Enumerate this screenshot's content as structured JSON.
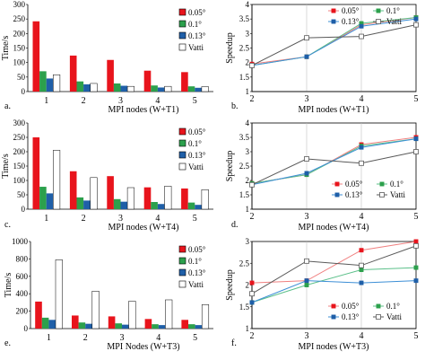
{
  "colors": {
    "s005": "#e8141c",
    "s01": "#2ca04c",
    "s013": "#1f5fa8",
    "vatti": "#ffffff",
    "vatti_line": "#595959",
    "line005": "#f08080",
    "line01": "#5cc08a",
    "line013": "#3d8fd6"
  },
  "chart_data": [
    {
      "id": "a",
      "type": "bar",
      "panel_label": "a.",
      "ylabel": "Time/s",
      "xlabel": "MPI nodes (W+T1)",
      "categories": [
        "1",
        "2",
        "3",
        "4",
        "5"
      ],
      "ylim": [
        0,
        300
      ],
      "yticks": [
        "0",
        "50",
        "100",
        "150",
        "200",
        "250",
        "300"
      ],
      "legend_position": "top-right",
      "series": [
        {
          "name": "0.05°",
          "values": [
            242,
            124,
            109,
            72,
            67
          ]
        },
        {
          "name": "0.1°",
          "values": [
            70,
            35,
            28,
            21,
            18
          ]
        },
        {
          "name": "0.13°",
          "values": [
            45,
            25,
            20,
            14,
            13
          ]
        },
        {
          "name": "Vatti",
          "values": [
            58,
            28,
            18,
            18,
            17
          ]
        }
      ]
    },
    {
      "id": "b",
      "type": "line",
      "panel_label": "b.",
      "ylabel": "Speedup",
      "xlabel": "MPI nodes (W+T1)",
      "x": [
        "2",
        "3",
        "4",
        "5"
      ],
      "ylim": [
        1,
        4
      ],
      "yticks": [
        "1",
        "1.5",
        "2",
        "2.5",
        "3",
        "3.5",
        "4"
      ],
      "legend_position": "top-right",
      "series": [
        {
          "name": "0.05°",
          "values": [
            1.95,
            2.2,
            3.3,
            3.55
          ]
        },
        {
          "name": "0.1°",
          "values": [
            1.9,
            2.2,
            3.35,
            3.55
          ]
        },
        {
          "name": "0.13°",
          "values": [
            1.9,
            2.2,
            3.25,
            3.5
          ]
        },
        {
          "name": "Vatti",
          "values": [
            1.9,
            2.85,
            2.9,
            3.3
          ]
        }
      ]
    },
    {
      "id": "c",
      "type": "bar",
      "panel_label": "c.",
      "ylabel": "Time/s",
      "xlabel": "MPI nodes (W+T4)",
      "categories": [
        "1",
        "2",
        "3",
        "4",
        "5"
      ],
      "ylim": [
        0,
        300
      ],
      "yticks": [
        "0",
        "50",
        "100",
        "150",
        "200",
        "250",
        "300"
      ],
      "legend_position": "top-right",
      "series": [
        {
          "name": "0.05°",
          "values": [
            250,
            132,
            115,
            76,
            72
          ]
        },
        {
          "name": "0.1°",
          "values": [
            78,
            41,
            35,
            25,
            23
          ]
        },
        {
          "name": "0.13°",
          "values": [
            55,
            30,
            26,
            18,
            15
          ]
        },
        {
          "name": "Vatti",
          "values": [
            205,
            110,
            75,
            80,
            68
          ]
        }
      ]
    },
    {
      "id": "d",
      "type": "line",
      "panel_label": "d.",
      "ylabel": "Speedup",
      "xlabel": "MPI nodes (W+T4)",
      "x": [
        "2",
        "3",
        "4",
        "5"
      ],
      "ylim": [
        1,
        4
      ],
      "yticks": [
        "1",
        "1.5",
        "2",
        "2.5",
        "3",
        "3.5",
        "4"
      ],
      "legend_position": "bottom-right",
      "series": [
        {
          "name": "0.05°",
          "values": [
            1.9,
            2.2,
            3.25,
            3.5
          ]
        },
        {
          "name": "0.1°",
          "values": [
            1.9,
            2.2,
            3.2,
            3.45
          ]
        },
        {
          "name": "0.13°",
          "values": [
            1.85,
            2.25,
            3.15,
            3.45
          ]
        },
        {
          "name": "Vatti",
          "values": [
            1.85,
            2.75,
            2.6,
            3.0
          ]
        }
      ]
    },
    {
      "id": "e",
      "type": "bar",
      "panel_label": "e.",
      "ylabel": "Time/s",
      "xlabel": "MPI Nodes (W+T3)",
      "categories": [
        "1",
        "2",
        "3",
        "4",
        "5"
      ],
      "ylim": [
        0,
        1000
      ],
      "yticks": [
        "0",
        "200",
        "400",
        "600",
        "800",
        "1000"
      ],
      "legend_position": "top-right",
      "series": [
        {
          "name": "0.05°",
          "values": [
            310,
            150,
            140,
            110,
            100
          ]
        },
        {
          "name": "0.1°",
          "values": [
            125,
            70,
            60,
            50,
            50
          ]
        },
        {
          "name": "0.13°",
          "values": [
            100,
            55,
            45,
            40,
            40
          ]
        },
        {
          "name": "Vatti",
          "values": [
            790,
            430,
            315,
            330,
            275
          ]
        }
      ]
    },
    {
      "id": "f",
      "type": "line",
      "panel_label": "f.",
      "ylabel": "Speedup",
      "xlabel": "MPI nodes (W+T3)",
      "x": [
        "2",
        "3",
        "4",
        "5"
      ],
      "ylim": [
        1,
        3
      ],
      "yticks": [
        "1",
        "1.5",
        "2",
        "2.5",
        "3"
      ],
      "legend_position": "bottom-right",
      "series": [
        {
          "name": "0.05°",
          "values": [
            2.05,
            2.1,
            2.8,
            3.0
          ]
        },
        {
          "name": "0.1°",
          "values": [
            1.6,
            2.0,
            2.35,
            2.4
          ]
        },
        {
          "name": "0.13°",
          "values": [
            1.6,
            2.1,
            2.05,
            2.1
          ]
        },
        {
          "name": "Vatti",
          "values": [
            1.8,
            2.55,
            2.45,
            2.9
          ]
        }
      ]
    }
  ]
}
